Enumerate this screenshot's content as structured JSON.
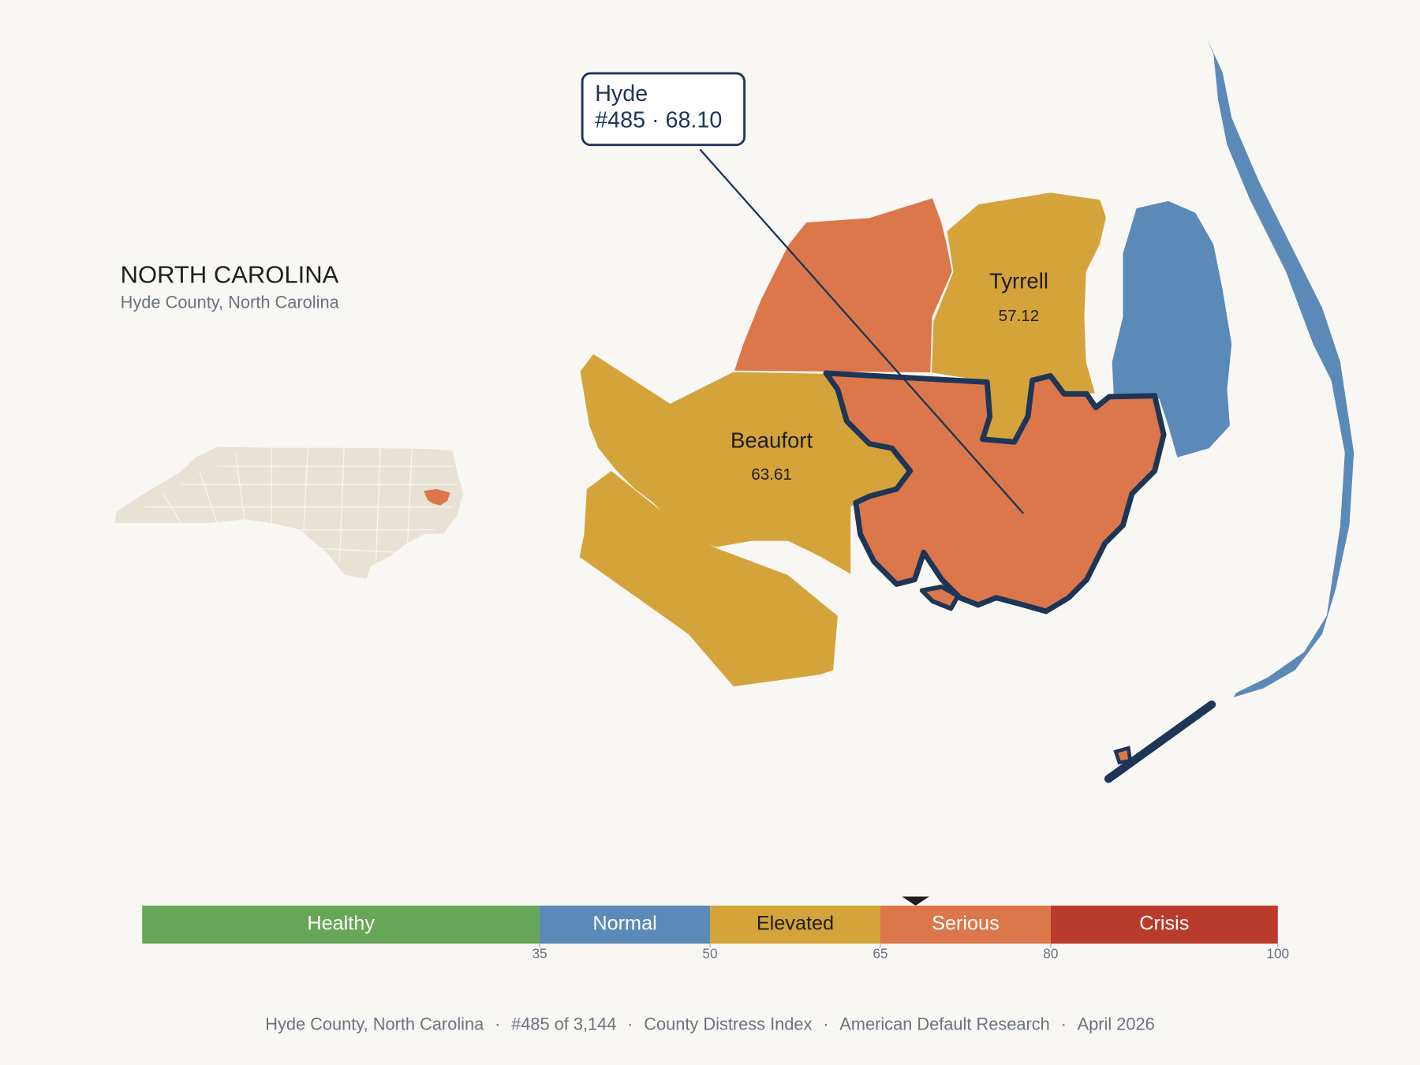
{
  "header": {
    "title": "NORTH CAROLINA",
    "subtitle": "Hyde County, North Carolina"
  },
  "callout": {
    "name": "Hyde",
    "text": "#485 · 68.10",
    "score": 68.1
  },
  "counties": [
    {
      "name": "Tyrrell",
      "value": 57.12
    },
    {
      "name": "Beaufort",
      "value": 63.61
    }
  ],
  "scale": {
    "min": 0,
    "max": 100,
    "segments": [
      {
        "label": "Healthy",
        "from": 0,
        "to": 35,
        "color": "#67a658",
        "text_color": "#ffffff"
      },
      {
        "label": "Normal",
        "from": 35,
        "to": 50,
        "color": "#5b8ab8",
        "text_color": "#ffffff"
      },
      {
        "label": "Elevated",
        "from": 50,
        "to": 65,
        "color": "#d4a33a",
        "text_color": "#1e1e1e"
      },
      {
        "label": "Serious",
        "from": 65,
        "to": 80,
        "color": "#db774a",
        "text_color": "#ffffff"
      },
      {
        "label": "Crisis",
        "from": 80,
        "to": 100,
        "color": "#b83b2b",
        "text_color": "#ffffff"
      }
    ],
    "ticks": [
      35,
      50,
      65,
      80,
      100
    ]
  },
  "footer": {
    "separator": "·",
    "parts": [
      "Hyde County, North Carolina",
      "#485 of 3,144",
      "County Distress Index",
      "American Default Research",
      "April 2026"
    ]
  }
}
